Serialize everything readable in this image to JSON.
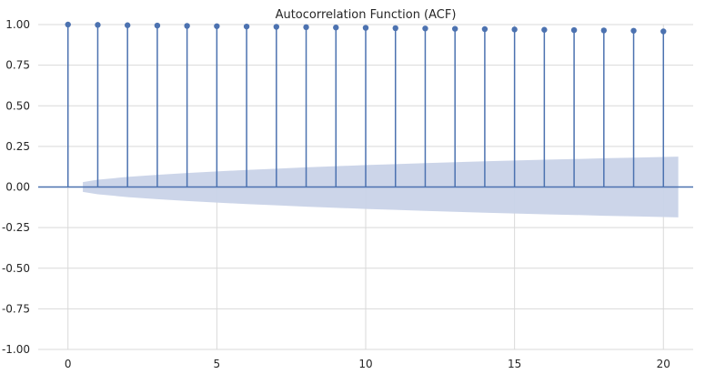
{
  "chart_data": {
    "type": "stem",
    "title": "Autocorrelation Function (ACF)",
    "xlabel": "",
    "ylabel": "",
    "xlim": [
      -1,
      21
    ],
    "ylim": [
      -1.0,
      1.0
    ],
    "x_ticks": [
      0,
      5,
      10,
      15,
      20
    ],
    "y_ticks": [
      "-1.00",
      "-0.75",
      "-0.50",
      "-0.25",
      "0.00",
      "0.25",
      "0.50",
      "0.75",
      "1.00"
    ],
    "y_tick_values": [
      -1.0,
      -0.75,
      -0.5,
      -0.25,
      0.0,
      0.25,
      0.5,
      0.75,
      1.0
    ],
    "grid": true,
    "lags": [
      0,
      1,
      2,
      3,
      4,
      5,
      6,
      7,
      8,
      9,
      10,
      11,
      12,
      13,
      14,
      15,
      16,
      17,
      18,
      19,
      20
    ],
    "acf": [
      1.0,
      0.998,
      0.996,
      0.994,
      0.992,
      0.99,
      0.988,
      0.986,
      0.984,
      0.982,
      0.98,
      0.978,
      0.976,
      0.974,
      0.972,
      0.97,
      0.968,
      0.966,
      0.964,
      0.962,
      0.958
    ],
    "confidence_band": {
      "x": [
        0.5,
        1,
        2,
        3,
        4,
        5,
        6,
        7,
        8,
        9,
        10,
        11,
        12,
        13,
        14,
        15,
        16,
        17,
        18,
        19,
        20,
        20.5
      ],
      "upper": [
        0.03,
        0.045,
        0.062,
        0.075,
        0.086,
        0.096,
        0.105,
        0.113,
        0.121,
        0.128,
        0.135,
        0.141,
        0.147,
        0.153,
        0.158,
        0.163,
        0.168,
        0.172,
        0.177,
        0.181,
        0.185,
        0.187
      ],
      "lower": [
        -0.03,
        -0.045,
        -0.062,
        -0.075,
        -0.086,
        -0.096,
        -0.105,
        -0.113,
        -0.121,
        -0.128,
        -0.135,
        -0.141,
        -0.147,
        -0.153,
        -0.158,
        -0.163,
        -0.168,
        -0.172,
        -0.177,
        -0.181,
        -0.185,
        -0.187
      ]
    },
    "colors": {
      "stem": "#4c72b0",
      "band": "#c9d3e8",
      "grid": "#d9d9d9",
      "zero_line": "#4c72b0"
    }
  }
}
